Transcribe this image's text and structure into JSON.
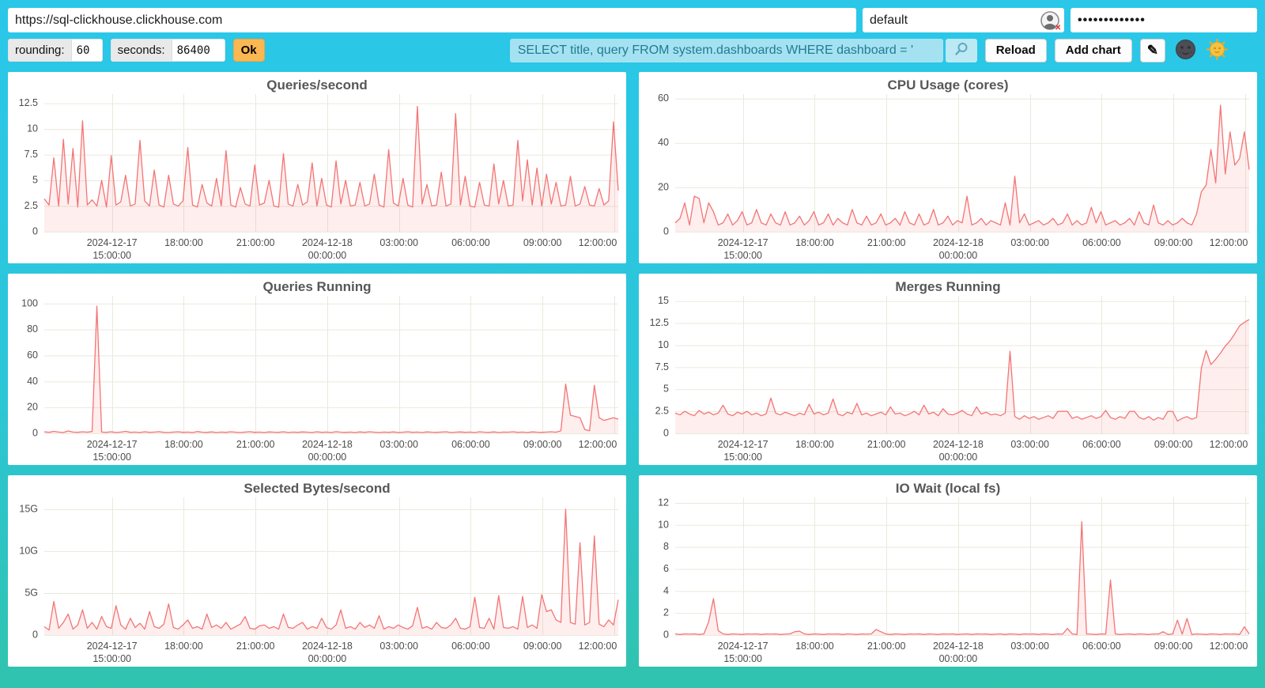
{
  "topbar": {
    "url_value": "https://sql-clickhouse.clickhouse.com",
    "user_value": "default",
    "password_value": "•••••••••••••"
  },
  "toolbar": {
    "rounding_label": "rounding:",
    "rounding_value": "60",
    "seconds_label": "seconds:",
    "seconds_value": "86400",
    "ok_label": "Ok",
    "query_value": "SELECT title, query FROM system.dashboards WHERE dashboard = '",
    "reload_label": "Reload",
    "add_chart_label": "Add chart",
    "edit_glyph": "✎"
  },
  "icons": {
    "user_error_icon": "user-circle-with-red-x",
    "search_icon": "magnifying-glass",
    "edit_icon": "pencil",
    "moon_icon": "dark-theme-moon-face",
    "sun_icon": "light-theme-sun-face"
  },
  "colors": {
    "background_top": "#2ac7e9",
    "background_bottom": "#30c3ae",
    "line": "#f47474",
    "fill": "rgba(244,116,116,0.12)",
    "grid": "#eae9dd",
    "axis_text": "#4c4c4c",
    "ok_bg": "#fbb751",
    "query_bg": "#a5e2f1",
    "query_text": "#1f7b93"
  },
  "chart_data": {
    "type": "line",
    "x_ticks": {
      "fracs": [
        0.118,
        0.243,
        0.368,
        0.493,
        0.618,
        0.743,
        0.868,
        0.993
      ],
      "labels": [
        [
          "2024-12-17",
          "15:00:00"
        ],
        [
          "18:00:00"
        ],
        [
          "21:00:00"
        ],
        [
          "2024-12-18",
          "00:00:00"
        ],
        [
          "03:00:00"
        ],
        [
          "06:00:00"
        ],
        [
          "09:00:00"
        ],
        [
          "12:00:00"
        ]
      ]
    },
    "charts": [
      {
        "title": "Queries/second",
        "ymax": 13.4,
        "yticks": [
          0,
          2.5,
          5,
          7.5,
          10,
          12.5
        ],
        "ytick_labels": [
          "0",
          "2.5",
          "5",
          "7.5",
          "10",
          "12.5"
        ],
        "values": [
          3.2,
          2.6,
          7.2,
          2.5,
          9.0,
          2.7,
          8.1,
          2.4,
          10.8,
          2.6,
          3.1,
          2.5,
          5.0,
          2.4,
          7.4,
          2.6,
          2.9,
          5.5,
          2.5,
          2.7,
          8.9,
          3.0,
          2.5,
          6.0,
          2.6,
          2.4,
          5.5,
          2.7,
          2.5,
          3.0,
          8.2,
          2.6,
          2.4,
          4.6,
          2.8,
          2.5,
          5.2,
          2.5,
          7.9,
          2.6,
          2.4,
          4.3,
          2.7,
          2.5,
          6.5,
          2.6,
          2.8,
          5.0,
          2.5,
          2.4,
          7.6,
          2.7,
          2.5,
          4.6,
          2.6,
          2.9,
          6.7,
          2.5,
          5.2,
          2.6,
          2.4,
          6.9,
          2.7,
          5.0,
          2.5,
          2.6,
          4.8,
          2.5,
          2.7,
          5.6,
          2.6,
          2.4,
          8.0,
          2.8,
          2.5,
          5.2,
          2.6,
          2.4,
          12.2,
          2.7,
          4.6,
          2.5,
          2.6,
          5.8,
          2.5,
          2.7,
          11.5,
          2.6,
          5.4,
          2.5,
          2.4,
          4.8,
          2.6,
          2.5,
          6.6,
          2.7,
          5.0,
          2.5,
          2.6,
          8.9,
          3.0,
          7.0,
          2.6,
          6.2,
          2.5,
          5.6,
          2.7,
          4.8,
          2.5,
          2.6,
          5.4,
          2.5,
          2.7,
          4.4,
          2.6,
          2.5,
          4.2,
          2.6,
          3.0,
          10.7,
          4.0
        ]
      },
      {
        "title": "CPU Usage (cores)",
        "ymax": 62,
        "yticks": [
          0,
          20,
          40,
          60
        ],
        "ytick_labels": [
          "0",
          "20",
          "40",
          "60"
        ],
        "values": [
          4,
          6,
          13,
          3,
          16,
          15,
          4,
          13,
          9,
          3,
          4,
          8,
          3,
          5,
          9,
          3,
          4,
          10,
          4,
          3,
          8,
          4,
          3,
          9,
          3,
          4,
          7,
          3,
          5,
          9,
          3,
          4,
          8,
          3,
          6,
          4,
          3,
          10,
          4,
          3,
          7,
          3,
          4,
          8,
          3,
          4,
          6,
          3,
          9,
          4,
          3,
          8,
          3,
          4,
          10,
          3,
          4,
          7,
          3,
          5,
          4,
          16,
          3,
          4,
          6,
          3,
          5,
          4,
          3,
          13,
          3,
          25,
          4,
          8,
          3,
          4,
          5,
          3,
          4,
          6,
          3,
          4,
          8,
          3,
          5,
          3,
          4,
          11,
          4,
          9,
          3,
          4,
          5,
          3,
          4,
          6,
          3,
          9,
          4,
          3,
          12,
          4,
          3,
          5,
          3,
          4,
          6,
          4,
          3,
          8,
          18,
          21,
          37,
          22,
          57,
          26,
          45,
          30,
          33,
          45,
          28
        ]
      },
      {
        "title": "Queries Running",
        "ymax": 106,
        "yticks": [
          0,
          20,
          40,
          60,
          80,
          100
        ],
        "ytick_labels": [
          "0",
          "20",
          "40",
          "60",
          "80",
          "100"
        ],
        "values": [
          1.2,
          0.8,
          1.5,
          1.0,
          0.7,
          1.8,
          1.0,
          0.8,
          1.2,
          0.9,
          1.4,
          98,
          1.0,
          0.8,
          1.2,
          0.7,
          1.0,
          1.5,
          0.8,
          1.0,
          0.7,
          1.2,
          0.8,
          1.0,
          1.3,
          0.8,
          0.7,
          1.0,
          1.2,
          0.8,
          1.0,
          0.7,
          1.4,
          0.9,
          0.8,
          1.1,
          0.7,
          1.0,
          0.8,
          1.2,
          0.9,
          0.7,
          1.0,
          1.3,
          0.8,
          1.0,
          0.7,
          1.1,
          0.9,
          0.8,
          1.2,
          0.7,
          1.0,
          0.8,
          1.1,
          0.9,
          0.7,
          1.2,
          0.8,
          1.0,
          0.7,
          1.3,
          0.9,
          0.8,
          1.0,
          0.7,
          1.1,
          0.8,
          1.2,
          0.9,
          0.7,
          1.0,
          0.8,
          1.1,
          0.7,
          0.9,
          1.2,
          0.8,
          1.0,
          0.7,
          1.1,
          0.9,
          0.8,
          1.0,
          1.2,
          0.7,
          0.9,
          1.1,
          0.8,
          1.0,
          0.7,
          1.2,
          0.9,
          0.8,
          1.1,
          0.7,
          1.0,
          0.9,
          1.2,
          0.8,
          1.0,
          0.7,
          1.1,
          0.9,
          0.8,
          1.0,
          1.2,
          0.9,
          2.0,
          38,
          14,
          13,
          12,
          3,
          2,
          37,
          12,
          10,
          11,
          12,
          11
        ]
      },
      {
        "title": "Merges Running",
        "ymax": 15.6,
        "yticks": [
          0,
          2.5,
          5,
          7.5,
          10,
          12.5,
          15
        ],
        "ytick_labels": [
          "0",
          "2.5",
          "5",
          "7.5",
          "10",
          "12.5",
          "15"
        ],
        "values": [
          2.3,
          2.1,
          2.5,
          2.2,
          2.0,
          2.6,
          2.2,
          2.4,
          2.1,
          2.3,
          3.2,
          2.2,
          2.0,
          2.4,
          2.2,
          2.5,
          2.1,
          2.3,
          2.0,
          2.2,
          4.0,
          2.3,
          2.1,
          2.4,
          2.2,
          2.0,
          2.3,
          2.1,
          3.3,
          2.2,
          2.4,
          2.1,
          2.3,
          3.9,
          2.2,
          2.0,
          2.4,
          2.2,
          3.4,
          2.1,
          2.3,
          2.0,
          2.2,
          2.4,
          2.1,
          3.0,
          2.2,
          2.3,
          2.0,
          2.2,
          2.5,
          2.1,
          3.2,
          2.2,
          2.4,
          2.0,
          2.8,
          2.2,
          2.1,
          2.3,
          2.6,
          2.2,
          2.0,
          3.0,
          2.2,
          2.4,
          2.1,
          2.2,
          2.0,
          2.3,
          9.3,
          1.9,
          1.6,
          2.0,
          1.7,
          1.9,
          1.6,
          1.8,
          2.0,
          1.7,
          2.5,
          2.5,
          2.5,
          1.7,
          1.9,
          1.6,
          1.8,
          2.0,
          1.7,
          1.9,
          2.6,
          1.8,
          1.6,
          1.9,
          1.7,
          2.5,
          2.5,
          1.8,
          1.6,
          1.9,
          1.5,
          1.8,
          1.6,
          2.5,
          2.5,
          1.4,
          1.7,
          1.9,
          1.6,
          1.8,
          7.4,
          9.4,
          7.8,
          8.4,
          9.1,
          9.9,
          10.5,
          11.3,
          12.2,
          12.6,
          12.9
        ]
      },
      {
        "title": "Selected Bytes/second",
        "ymax": 16.4,
        "yticks": [
          0,
          5,
          10,
          15
        ],
        "ytick_labels": [
          "0",
          "5G",
          "10G",
          "15G"
        ],
        "values": [
          1.0,
          0.6,
          4.0,
          0.8,
          1.5,
          2.5,
          0.7,
          1.2,
          3.0,
          0.8,
          1.5,
          0.7,
          2.2,
          1.0,
          0.8,
          3.5,
          1.2,
          0.7,
          2.0,
          0.9,
          1.4,
          0.7,
          2.8,
          1.0,
          0.8,
          1.3,
          3.7,
          0.9,
          0.7,
          1.2,
          1.8,
          0.8,
          1.0,
          0.7,
          2.5,
          0.9,
          1.2,
          0.8,
          1.5,
          0.7,
          1.0,
          1.3,
          2.2,
          0.8,
          0.7,
          1.1,
          1.2,
          0.8,
          1.0,
          0.7,
          2.5,
          0.9,
          0.8,
          1.2,
          1.5,
          0.7,
          1.0,
          0.8,
          2.0,
          0.9,
          0.7,
          1.2,
          3.0,
          0.8,
          1.0,
          0.7,
          1.5,
          0.9,
          1.2,
          0.8,
          2.3,
          0.7,
          1.0,
          0.8,
          1.2,
          0.9,
          0.7,
          1.1,
          3.3,
          0.8,
          1.0,
          0.7,
          1.5,
          0.9,
          0.8,
          1.2,
          2.0,
          0.8,
          0.7,
          1.0,
          4.5,
          0.9,
          0.8,
          2.0,
          0.7,
          4.7,
          0.9,
          0.8,
          1.0,
          0.7,
          4.6,
          0.9,
          1.2,
          0.8,
          4.8,
          2.8,
          3.0,
          1.8,
          1.5,
          15.0,
          1.5,
          1.3,
          11.0,
          1.2,
          1.5,
          11.8,
          1.3,
          1.0,
          1.8,
          1.2,
          4.2
        ]
      },
      {
        "title": "IO Wait (local fs)",
        "ymax": 12.5,
        "yticks": [
          0,
          2,
          4,
          6,
          8,
          10,
          12
        ],
        "ytick_labels": [
          "0",
          "2",
          "4",
          "6",
          "8",
          "10",
          "12"
        ],
        "values": [
          0.1,
          0.05,
          0.1,
          0.08,
          0.1,
          0.05,
          0.1,
          1.2,
          3.3,
          0.4,
          0.1,
          0.05,
          0.1,
          0.08,
          0.05,
          0.1,
          0.08,
          0.1,
          0.05,
          0.1,
          0.08,
          0.1,
          0.05,
          0.08,
          0.1,
          0.3,
          0.35,
          0.1,
          0.05,
          0.1,
          0.08,
          0.05,
          0.1,
          0.08,
          0.1,
          0.05,
          0.1,
          0.08,
          0.05,
          0.1,
          0.08,
          0.1,
          0.5,
          0.3,
          0.1,
          0.05,
          0.1,
          0.08,
          0.05,
          0.1,
          0.08,
          0.1,
          0.05,
          0.1,
          0.08,
          0.05,
          0.1,
          0.08,
          0.1,
          0.05,
          0.08,
          0.1,
          0.05,
          0.1,
          0.08,
          0.1,
          0.05,
          0.08,
          0.1,
          0.05,
          0.1,
          0.08,
          0.05,
          0.1,
          0.08,
          0.1,
          0.05,
          0.1,
          0.08,
          0.05,
          0.1,
          0.08,
          0.6,
          0.1,
          0.05,
          10.3,
          0.1,
          0.08,
          0.05,
          0.1,
          0.08,
          5.0,
          0.1,
          0.05,
          0.08,
          0.1,
          0.05,
          0.1,
          0.08,
          0.05,
          0.1,
          0.08,
          0.3,
          0.05,
          0.1,
          1.35,
          0.08,
          1.5,
          0.05,
          0.1,
          0.08,
          0.05,
          0.1,
          0.08,
          0.05,
          0.1,
          0.08,
          0.1,
          0.05,
          0.75,
          0.1
        ]
      }
    ]
  }
}
